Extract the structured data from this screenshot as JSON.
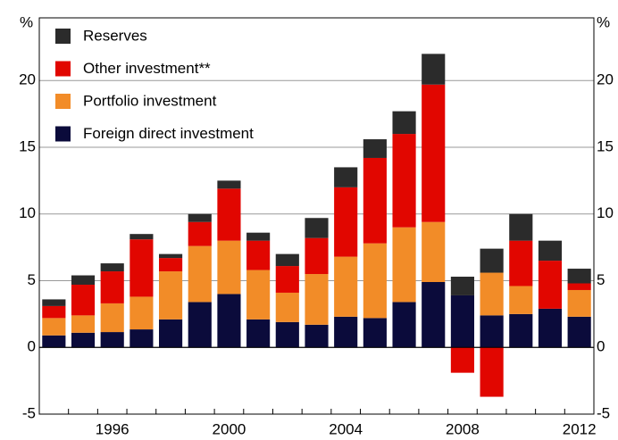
{
  "chart_data": {
    "type": "bar",
    "stacked": true,
    "y_unit": "%",
    "categories": [
      null,
      null,
      1996,
      null,
      null,
      null,
      2000,
      null,
      null,
      null,
      2004,
      null,
      null,
      null,
      2008,
      null,
      null,
      null,
      2012
    ],
    "series": [
      {
        "name": "Foreign direct investment",
        "color": "#0b0b3b",
        "values": [
          0.9,
          1.1,
          1.15,
          1.35,
          2.1,
          3.4,
          4.0,
          2.1,
          1.9,
          1.7,
          2.3,
          2.2,
          3.4,
          4.9,
          3.9,
          2.4,
          2.5,
          2.9,
          2.3
        ]
      },
      {
        "name": "Portfolio investment",
        "color": "#f28c28",
        "values": [
          1.3,
          1.3,
          2.15,
          2.45,
          3.6,
          4.2,
          4.0,
          3.7,
          2.2,
          3.8,
          4.5,
          5.6,
          5.6,
          4.5,
          0,
          3.2,
          2.1,
          0,
          2.0
        ]
      },
      {
        "name": "Other investment**",
        "color": "#e10600",
        "values": [
          0.9,
          2.3,
          2.4,
          4.3,
          1.0,
          1.8,
          3.9,
          2.2,
          2.0,
          2.7,
          5.2,
          6.4,
          7.0,
          10.3,
          -1.9,
          -3.7,
          3.4,
          3.6,
          0.5
        ]
      },
      {
        "name": "Reserves",
        "color": "#2b2b2b",
        "values": [
          0.5,
          0.7,
          0.6,
          0.4,
          0.3,
          0.6,
          0.6,
          0.6,
          0.9,
          1.5,
          1.5,
          1.4,
          1.7,
          2.3,
          1.4,
          1.8,
          2.0,
          1.5,
          1.1
        ]
      }
    ],
    "ylim": [
      -5,
      24.7
    ],
    "yticks": [
      -5,
      0,
      5,
      10,
      15,
      20
    ],
    "grid": true
  }
}
